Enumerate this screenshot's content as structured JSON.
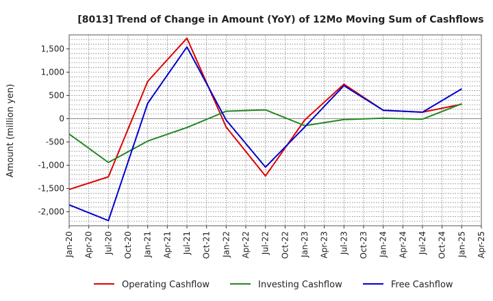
{
  "chart_data": {
    "type": "line",
    "title": "[8013]  Trend of Change in Amount (YoY) of 12Mo Moving Sum of Cashflows",
    "xlabel": "",
    "ylabel": "Amount (million yen)",
    "ylim": [
      -2300,
      1800
    ],
    "yticks": [
      -2000,
      -1500,
      -1000,
      -500,
      0,
      500,
      1000,
      1500
    ],
    "ytick_labels": [
      "-2,000",
      "-1,500",
      "-1,000",
      "-500",
      "0",
      "500",
      "1,000",
      "1,500"
    ],
    "categories": [
      "Jan-20",
      "Apr-20",
      "Jul-20",
      "Oct-20",
      "Jan-21",
      "Apr-21",
      "Jul-21",
      "Oct-21",
      "Jan-22",
      "Apr-22",
      "Jul-22",
      "Oct-22",
      "Jan-23",
      "Apr-23",
      "Jul-23",
      "Oct-23",
      "Jan-24",
      "Apr-24",
      "Jul-24",
      "Oct-24",
      "Jan-25",
      "Apr-25"
    ],
    "grid": true,
    "legend_position": "bottom",
    "series": [
      {
        "name": "Operating Cashflow",
        "color": "#dd0000",
        "x": [
          "Jan-20",
          "Jul-20",
          "Jan-21",
          "Jul-21",
          "Jan-22",
          "Jul-22",
          "Jan-23",
          "Jul-23",
          "Jan-24",
          "Jul-24",
          "Jan-25"
        ],
        "values": [
          -1520,
          -1250,
          800,
          1730,
          -180,
          -1230,
          -30,
          740,
          180,
          140,
          310
        ]
      },
      {
        "name": "Investing Cashflow",
        "color": "#228822",
        "x": [
          "Jan-20",
          "Jul-20",
          "Jan-21",
          "Jul-21",
          "Jan-22",
          "Jul-22",
          "Jan-23",
          "Jul-23",
          "Jan-24",
          "Jul-24",
          "Jan-25"
        ],
        "values": [
          -330,
          -940,
          -480,
          -190,
          160,
          190,
          -150,
          -20,
          10,
          -10,
          320
        ]
      },
      {
        "name": "Free Cashflow",
        "color": "#0000cc",
        "x": [
          "Jan-20",
          "Jul-20",
          "Jan-21",
          "Jul-21",
          "Jan-22",
          "Jul-22",
          "Jan-23",
          "Jul-23",
          "Jan-24",
          "Jul-24",
          "Jan-25"
        ],
        "values": [
          -1850,
          -2190,
          330,
          1540,
          -30,
          -1040,
          -180,
          710,
          180,
          140,
          640
        ]
      }
    ]
  }
}
